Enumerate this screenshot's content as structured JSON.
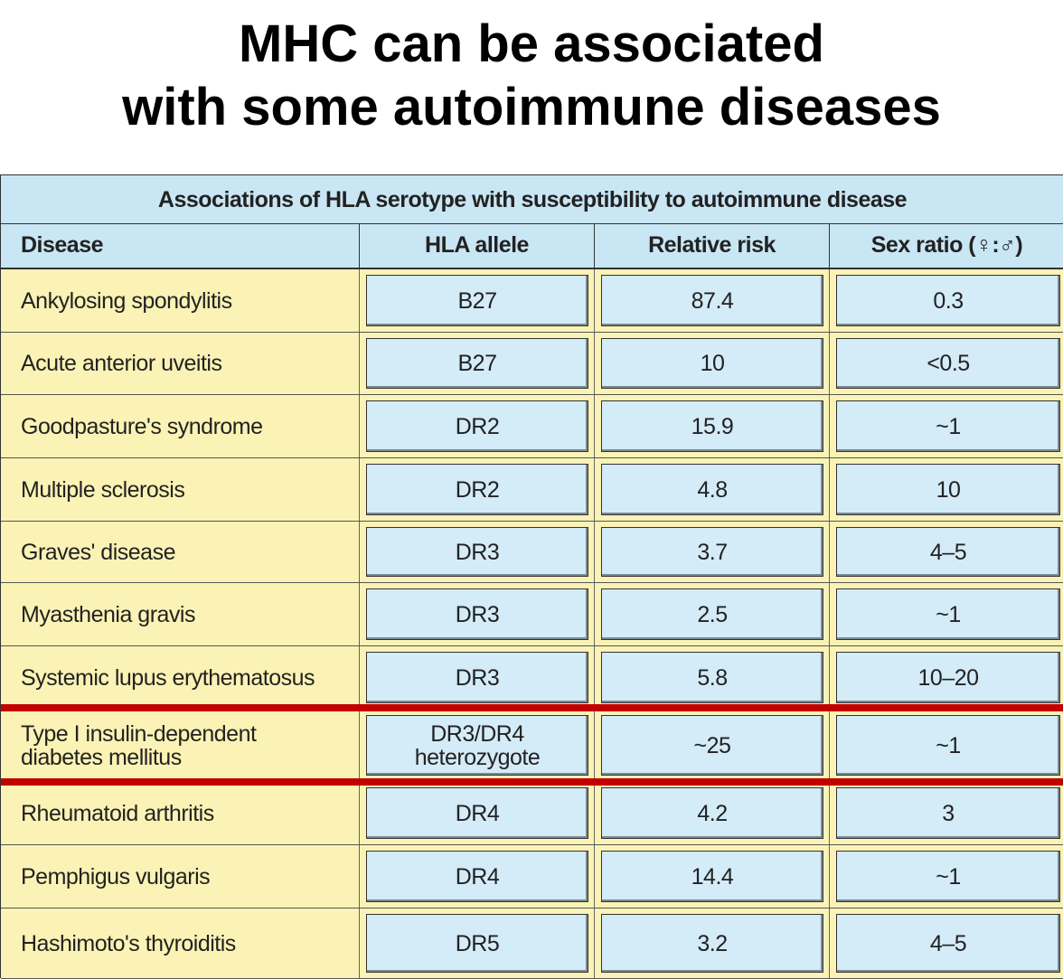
{
  "title": {
    "line1": "MHC can be associated",
    "line2": "with some autoimmune diseases"
  },
  "table": {
    "caption": "Associations of HLA serotype with susceptibility to autoimmune disease",
    "headers": {
      "disease": "Disease",
      "allele": "HLA allele",
      "risk": "Relative risk",
      "sex": "Sex ratio (♀:♂)"
    },
    "rows": [
      {
        "disease": "Ankylosing spondylitis",
        "allele": "B27",
        "risk": "87.4",
        "sex": "0.3"
      },
      {
        "disease": "Acute anterior uveitis",
        "allele": "B27",
        "risk": "10",
        "sex": "<0.5"
      },
      {
        "disease": "Goodpasture's syndrome",
        "allele": "DR2",
        "risk": "15.9",
        "sex": "~1"
      },
      {
        "disease": "Multiple sclerosis",
        "allele": "DR2",
        "risk": "4.8",
        "sex": "10"
      },
      {
        "disease": "Graves' disease",
        "allele": "DR3",
        "risk": "3.7",
        "sex": "4–5"
      },
      {
        "disease": "Myasthenia gravis",
        "allele": "DR3",
        "risk": "2.5",
        "sex": "~1"
      },
      {
        "disease": "Systemic lupus erythematosus",
        "allele": "DR3",
        "risk": "5.8",
        "sex": "10–20"
      },
      {
        "disease": "Type I insulin-dependent\ndiabetes mellitus",
        "allele": "DR3/DR4\nheterozygote",
        "risk": "~25",
        "sex": "~1",
        "highlighted": true
      },
      {
        "disease": "Rheumatoid arthritis",
        "allele": "DR4",
        "risk": "4.2",
        "sex": "3"
      },
      {
        "disease": "Pemphigus vulgaris",
        "allele": "DR4",
        "risk": "14.4",
        "sex": "~1"
      },
      {
        "disease": "Hashimoto's thyroiditis",
        "allele": "DR5",
        "risk": "3.2",
        "sex": "4–5"
      }
    ]
  },
  "colors": {
    "header_bg": "#c9e6f5",
    "disease_bg": "#fbf3b5",
    "value_box_bg": "#d4ebf8",
    "highlight_line": "#c20000"
  }
}
